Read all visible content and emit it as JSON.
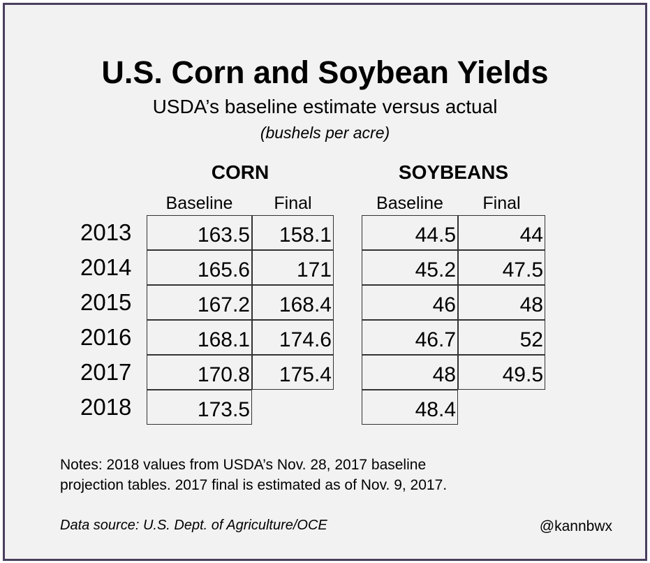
{
  "chart_data": {
    "type": "table",
    "title": "U.S. Corn and Soybean Yields",
    "subtitle": "USDA’s baseline estimate versus actual",
    "units": "(bushels per acre)",
    "groups": [
      {
        "name": "CORN",
        "columns": [
          "Baseline",
          "Final"
        ],
        "rows": [
          [
            "163.5",
            "158.1"
          ],
          [
            "165.6",
            "171"
          ],
          [
            "167.2",
            "168.4"
          ],
          [
            "168.1",
            "174.6"
          ],
          [
            "170.8",
            "175.4"
          ],
          [
            "173.5",
            ""
          ]
        ]
      },
      {
        "name": "SOYBEANS",
        "columns": [
          "Baseline",
          "Final"
        ],
        "rows": [
          [
            "44.5",
            "44"
          ],
          [
            "45.2",
            "47.5"
          ],
          [
            "46",
            "48"
          ],
          [
            "46.7",
            "52"
          ],
          [
            "48",
            "49.5"
          ],
          [
            "48.4",
            ""
          ]
        ]
      }
    ],
    "years": [
      "2013",
      "2014",
      "2015",
      "2016",
      "2017",
      "2018"
    ]
  },
  "notes": [
    "Notes: 2018 values from USDA’s Nov. 28, 2017 baseline",
    "projection tables. 2017 final is estimated as of Nov. 9, 2017."
  ],
  "source": "Data source: U.S. Dept. of Agriculture/OCE",
  "handle": "@kannbwx"
}
